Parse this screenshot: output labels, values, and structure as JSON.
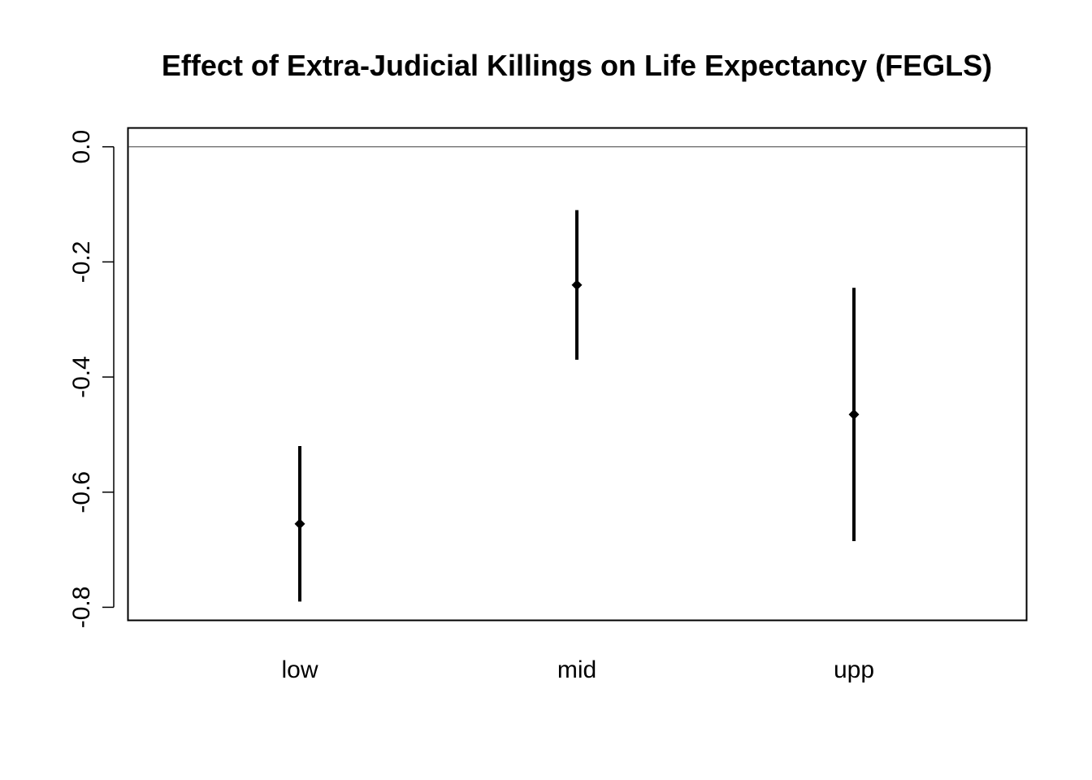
{
  "chart_data": {
    "type": "scatter",
    "title": "Effect of Extra-Judicial Killings on Life Expectancy (FEGLS)",
    "xlabel": "",
    "ylabel": "",
    "categories": [
      "low",
      "mid",
      "upp"
    ],
    "estimates": [
      -0.655,
      -0.24,
      -0.465
    ],
    "ci_lower": [
      -0.79,
      -0.37,
      -0.685
    ],
    "ci_upper": [
      -0.52,
      -0.11,
      -0.245
    ],
    "ylim": [
      -0.822,
      0.032
    ],
    "yticks": [
      0.0,
      -0.2,
      -0.4,
      -0.6,
      -0.8
    ],
    "ytick_labels": [
      "0.0",
      "-0.2",
      "-0.4",
      "-0.6",
      "-0.8"
    ],
    "reference_line": 0.0,
    "grid": false,
    "legend": "none",
    "colors": {
      "points": "#000000",
      "reference_line": "#555555",
      "frame": "#000000"
    }
  }
}
